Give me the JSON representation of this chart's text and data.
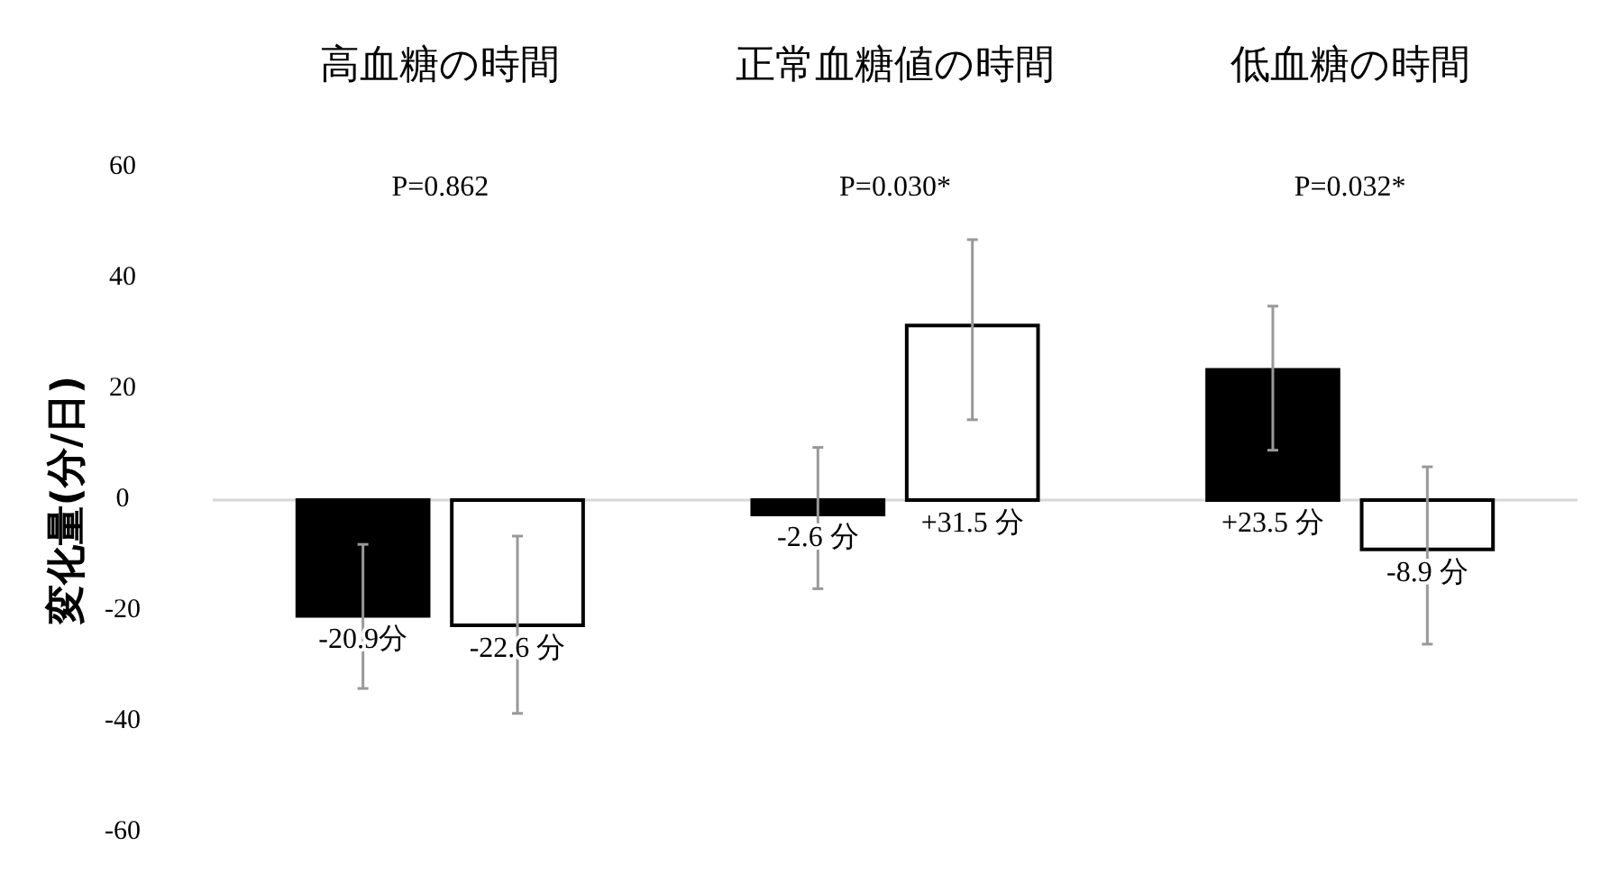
{
  "chart_data": {
    "type": "bar",
    "ylabel": "変化量(分/日)",
    "categories": [
      "高血糖の時間",
      "正常血糖値の時間",
      "低血糖の時間"
    ],
    "series": [
      {
        "color": "#000000",
        "values": [
          -20.9,
          -2.6,
          23.5
        ],
        "errors": [
          [
            -34,
            -8
          ],
          [
            -16,
            9.5
          ],
          [
            9,
            35
          ]
        ],
        "value_labels": [
          "-20.9分",
          "-2.6 分",
          "+23.5 分"
        ]
      },
      {
        "color": "#ffffff",
        "values": [
          -22.6,
          31.5,
          -8.9
        ],
        "errors": [
          [
            -38.5,
            -6.5
          ],
          [
            14.5,
            47
          ],
          [
            -26,
            6
          ]
        ],
        "value_labels": [
          "-22.6 分",
          "+31.5 分",
          "-8.9 分"
        ]
      }
    ],
    "ylim": [
      -60,
      60
    ],
    "yticks": [
      -60,
      -40,
      -20,
      0,
      20,
      40,
      60
    ],
    "annotations": [
      "P=0.862",
      "P=0.030*",
      "P=0.032*"
    ]
  }
}
